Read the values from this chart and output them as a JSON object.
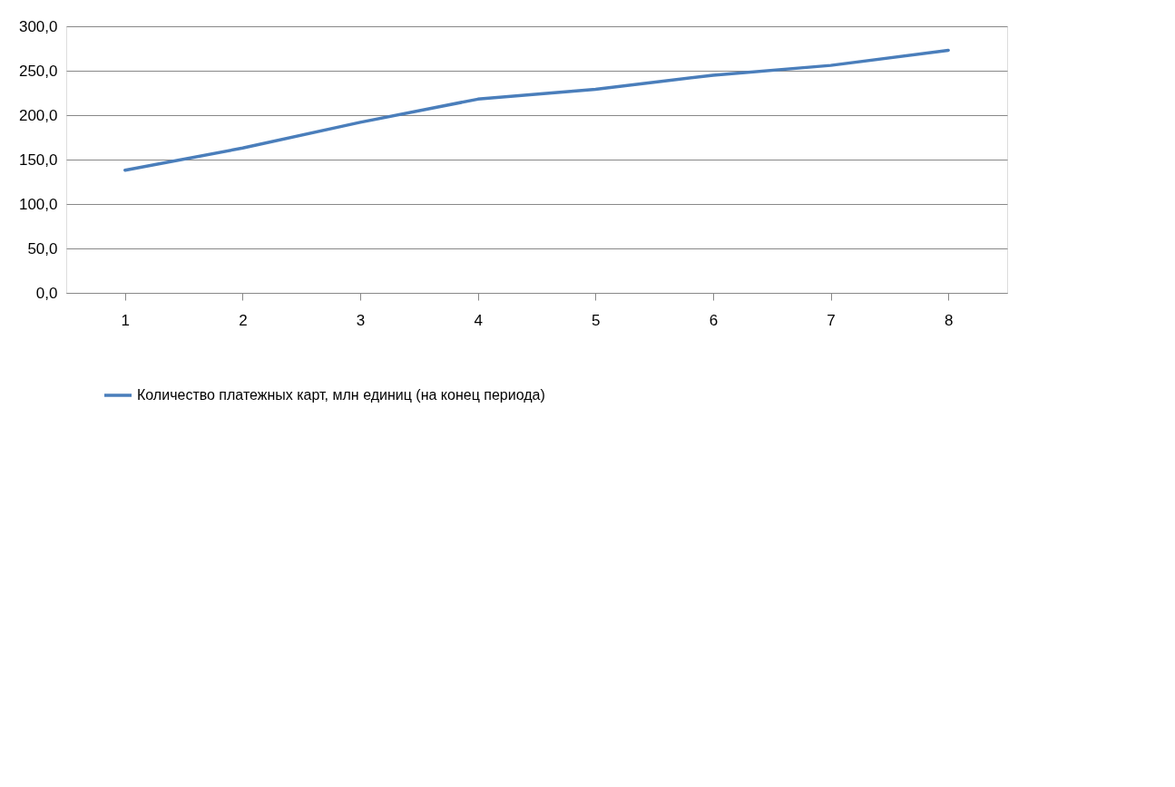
{
  "chart_data": {
    "type": "line",
    "categories": [
      "1",
      "2",
      "3",
      "4",
      "5",
      "6",
      "7",
      "8"
    ],
    "series": [
      {
        "name": "Количество платежных карт, млн  единиц (на конец периода)",
        "color": "#4a7ebb",
        "values": [
          138,
          163,
          192,
          218,
          229,
          245,
          256,
          273
        ]
      }
    ],
    "ylim": [
      0,
      300
    ],
    "yticks": [
      {
        "value": 0,
        "label": "0,0"
      },
      {
        "value": 50,
        "label": "50,0"
      },
      {
        "value": 100,
        "label": "100,0"
      },
      {
        "value": 150,
        "label": "150,0"
      },
      {
        "value": 200,
        "label": "200,0"
      },
      {
        "value": 250,
        "label": "250,0"
      },
      {
        "value": 300,
        "label": "300,0"
      }
    ],
    "grid": "y",
    "legend": "bottom",
    "marker": "none",
    "line_style": "solid"
  }
}
